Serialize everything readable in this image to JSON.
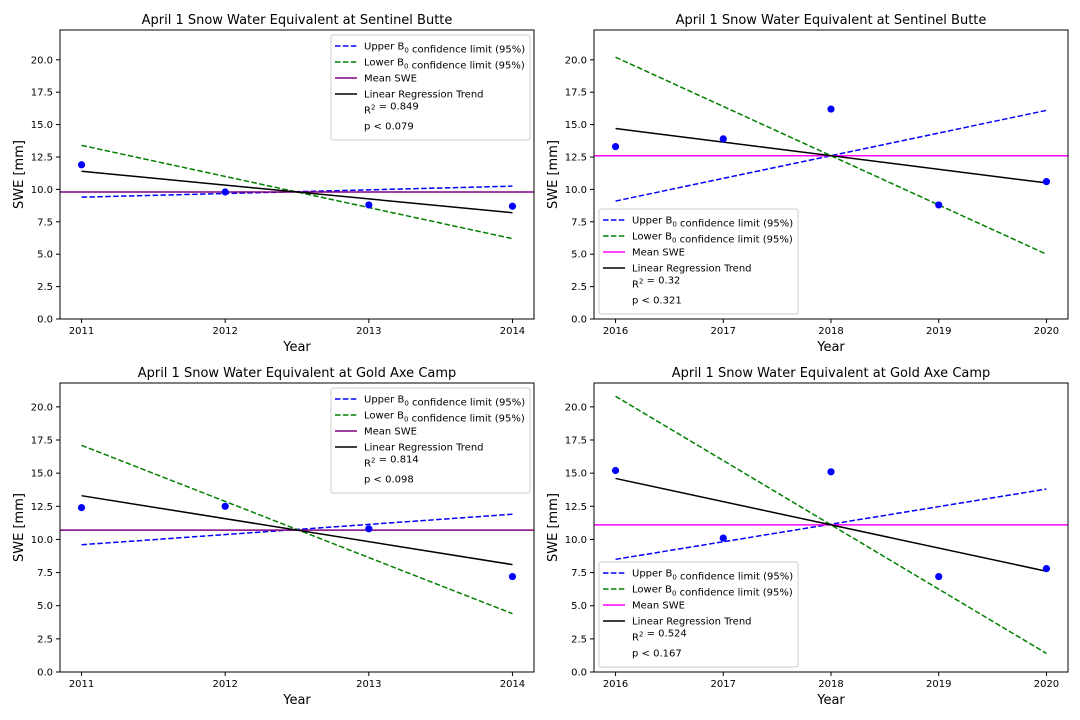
{
  "chart_data": [
    {
      "type": "line",
      "title": "April 1 Snow Water Equivalent at Sentinel Butte",
      "xlabel": "Year",
      "ylabel": "SWE [mm]",
      "xlim": [
        2010.85,
        2014.15
      ],
      "ylim": [
        0,
        22.3
      ],
      "x_ticks": [
        "2011",
        "2012",
        "2013",
        "2014"
      ],
      "y_ticks": [
        "0.0",
        "2.5",
        "5.0",
        "7.5",
        "10.0",
        "12.5",
        "15.0",
        "17.5",
        "20.0"
      ],
      "grid": false,
      "legend_position": "top-right",
      "points": {
        "x": [
          2011,
          2012,
          2013,
          2014
        ],
        "y": [
          11.9,
          9.8,
          8.8,
          8.7
        ],
        "color": "#0000ff"
      },
      "series": [
        {
          "name": "Upper B₀ confidence limit (95%)",
          "style": "dashed",
          "color": "#0000ff",
          "x": [
            2011,
            2014
          ],
          "y": [
            9.4,
            10.25
          ]
        },
        {
          "name": "Lower B₀ confidence limit (95%)",
          "style": "dashed",
          "color": "#008000",
          "x": [
            2011,
            2014
          ],
          "y": [
            13.4,
            6.2
          ]
        },
        {
          "name": "Mean SWE",
          "style": "solid",
          "color": "#800080",
          "x": [
            2010.85,
            2014.15
          ],
          "y": [
            9.8,
            9.8
          ]
        },
        {
          "name": "Linear Regression Trend",
          "style": "solid",
          "color": "#000000",
          "x": [
            2011,
            2014
          ],
          "y": [
            11.4,
            8.2
          ]
        }
      ],
      "stats": [
        "R² = 0.849",
        "p < 0.079"
      ]
    },
    {
      "type": "line",
      "title": "April 1 Snow Water Equivalent at Sentinel Butte",
      "xlabel": "Year",
      "ylabel": "SWE [mm]",
      "xlim": [
        2015.8,
        2020.2
      ],
      "ylim": [
        0,
        22.3
      ],
      "x_ticks": [
        "2016",
        "2017",
        "2018",
        "2019",
        "2020"
      ],
      "y_ticks": [
        "0.0",
        "2.5",
        "5.0",
        "7.5",
        "10.0",
        "12.5",
        "15.0",
        "17.5",
        "20.0"
      ],
      "grid": false,
      "legend_position": "bottom-left",
      "points": {
        "x": [
          2016,
          2017,
          2018,
          2019,
          2020
        ],
        "y": [
          13.3,
          13.9,
          16.2,
          8.8,
          10.6
        ],
        "color": "#0000ff"
      },
      "series": [
        {
          "name": "Upper B₀ confidence limit (95%)",
          "style": "dashed",
          "color": "#0000ff",
          "x": [
            2016,
            2020
          ],
          "y": [
            9.1,
            16.1
          ]
        },
        {
          "name": "Lower B₀ confidence limit (95%)",
          "style": "dashed",
          "color": "#008000",
          "x": [
            2016,
            2020
          ],
          "y": [
            20.2,
            5.0
          ]
        },
        {
          "name": "Mean SWE",
          "style": "solid",
          "color": "#ff00ff",
          "x": [
            2015.8,
            2020.2
          ],
          "y": [
            12.6,
            12.6
          ]
        },
        {
          "name": "Linear Regression Trend",
          "style": "solid",
          "color": "#000000",
          "x": [
            2016,
            2020
          ],
          "y": [
            14.7,
            10.5
          ]
        }
      ],
      "stats": [
        "R² = 0.32",
        "p < 0.321"
      ]
    },
    {
      "type": "line",
      "title": "April 1 Snow Water Equivalent at Gold Axe Camp",
      "xlabel": "Year",
      "ylabel": "SWE [mm]",
      "xlim": [
        2010.85,
        2014.15
      ],
      "ylim": [
        0,
        21.8
      ],
      "x_ticks": [
        "2011",
        "2012",
        "2013",
        "2014"
      ],
      "y_ticks": [
        "0.0",
        "2.5",
        "5.0",
        "7.5",
        "10.0",
        "12.5",
        "15.0",
        "17.5",
        "20.0"
      ],
      "grid": false,
      "legend_position": "top-right",
      "points": {
        "x": [
          2011,
          2012,
          2013,
          2014
        ],
        "y": [
          12.4,
          12.5,
          10.8,
          7.2
        ],
        "color": "#0000ff"
      },
      "series": [
        {
          "name": "Upper B₀ confidence limit (95%)",
          "style": "dashed",
          "color": "#0000ff",
          "x": [
            2011,
            2014
          ],
          "y": [
            9.6,
            11.9
          ]
        },
        {
          "name": "Lower B₀ confidence limit (95%)",
          "style": "dashed",
          "color": "#008000",
          "x": [
            2011,
            2014
          ],
          "y": [
            17.1,
            4.4
          ]
        },
        {
          "name": "Mean SWE",
          "style": "solid",
          "color": "#800080",
          "x": [
            2010.85,
            2014.15
          ],
          "y": [
            10.7,
            10.7
          ]
        },
        {
          "name": "Linear Regression Trend",
          "style": "solid",
          "color": "#000000",
          "x": [
            2011,
            2014
          ],
          "y": [
            13.3,
            8.1
          ]
        }
      ],
      "stats": [
        "R² = 0.814",
        "p < 0.098"
      ]
    },
    {
      "type": "line",
      "title": "April 1 Snow Water Equivalent at Gold Axe Camp",
      "xlabel": "Year",
      "ylabel": "SWE [mm]",
      "xlim": [
        2015.8,
        2020.2
      ],
      "ylim": [
        0,
        21.8
      ],
      "x_ticks": [
        "2016",
        "2017",
        "2018",
        "2019",
        "2020"
      ],
      "y_ticks": [
        "0.0",
        "2.5",
        "5.0",
        "7.5",
        "10.0",
        "12.5",
        "15.0",
        "17.5",
        "20.0"
      ],
      "grid": false,
      "legend_position": "bottom-left",
      "points": {
        "x": [
          2016,
          2017,
          2018,
          2019,
          2020
        ],
        "y": [
          15.2,
          10.1,
          15.1,
          7.2,
          7.8
        ],
        "color": "#0000ff"
      },
      "series": [
        {
          "name": "Upper B₀ confidence limit (95%)",
          "style": "dashed",
          "color": "#0000ff",
          "x": [
            2016,
            2020
          ],
          "y": [
            8.5,
            13.8
          ]
        },
        {
          "name": "Lower B₀ confidence limit (95%)",
          "style": "dashed",
          "color": "#008000",
          "x": [
            2016,
            2020
          ],
          "y": [
            20.8,
            1.4
          ]
        },
        {
          "name": "Mean SWE",
          "style": "solid",
          "color": "#ff00ff",
          "x": [
            2015.8,
            2020.2
          ],
          "y": [
            11.1,
            11.1
          ]
        },
        {
          "name": "Linear Regression Trend",
          "style": "solid",
          "color": "#000000",
          "x": [
            2016,
            2020
          ],
          "y": [
            14.6,
            7.6
          ]
        }
      ],
      "stats": [
        "R² = 0.524",
        "p < 0.167"
      ]
    }
  ]
}
